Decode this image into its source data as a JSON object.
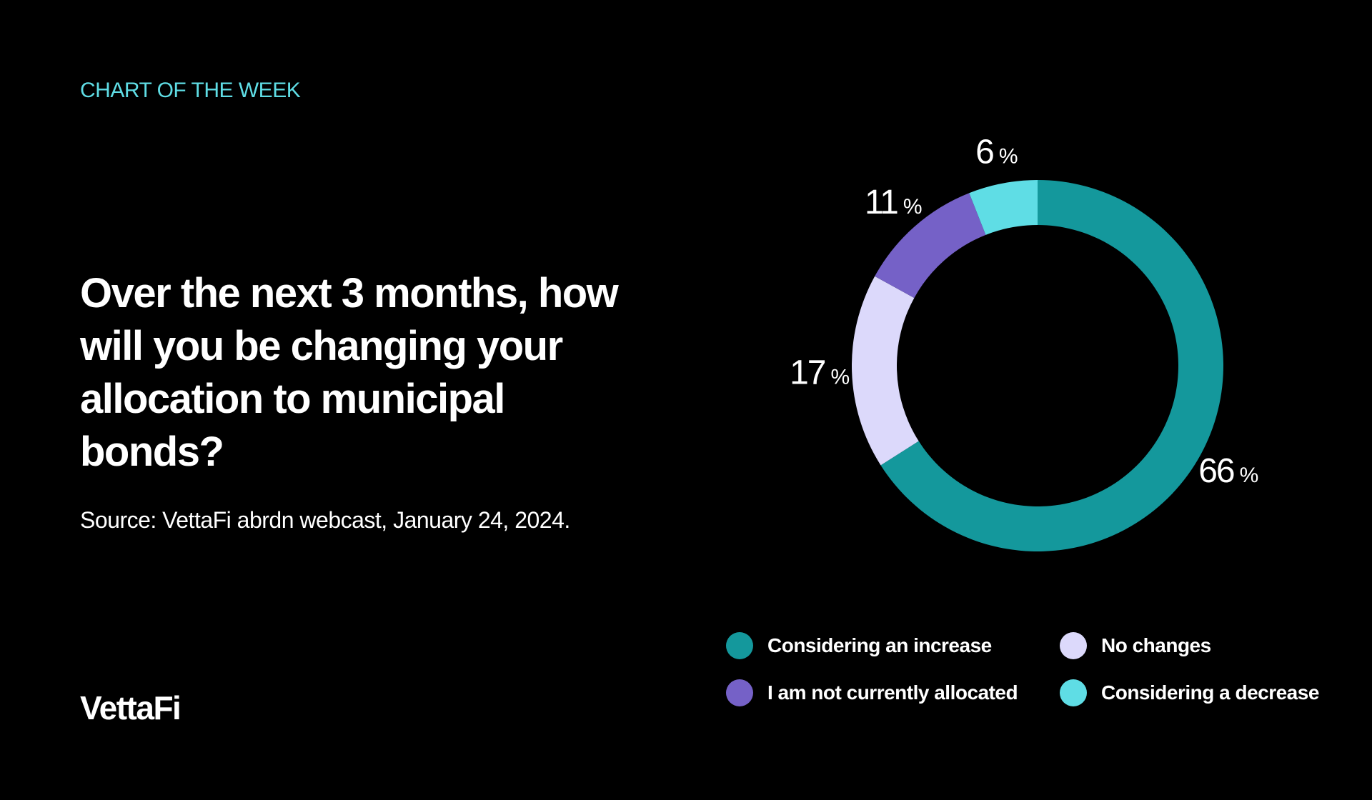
{
  "kicker": "CHART OF THE WEEK",
  "headline": "Over the next 3 months, how will you be changing your allocation to municipal bonds?",
  "source": "Source: VettaFi abrdn webcast, January 24, 2024.",
  "logo": "VettaFi",
  "colors": {
    "background": "#000000",
    "accent": "#5fdde5"
  },
  "chart_data": {
    "type": "pie",
    "variant": "donut",
    "start_angle_deg": 0,
    "direction": "clockwise",
    "legend_position": "bottom-right",
    "slices": [
      {
        "label": "Considering an increase",
        "value": 66,
        "display": "66",
        "unit": "%",
        "color": "#14989c"
      },
      {
        "label": "No changes",
        "value": 17,
        "display": "17",
        "unit": "%",
        "color": "#dcd9fb"
      },
      {
        "label": "I am not currently allocated",
        "value": 11,
        "display": "11",
        "unit": "%",
        "color": "#7561c7"
      },
      {
        "label": "Considering a decrease",
        "value": 6,
        "display": "6",
        "unit": "%",
        "color": "#5fdde5"
      }
    ]
  }
}
